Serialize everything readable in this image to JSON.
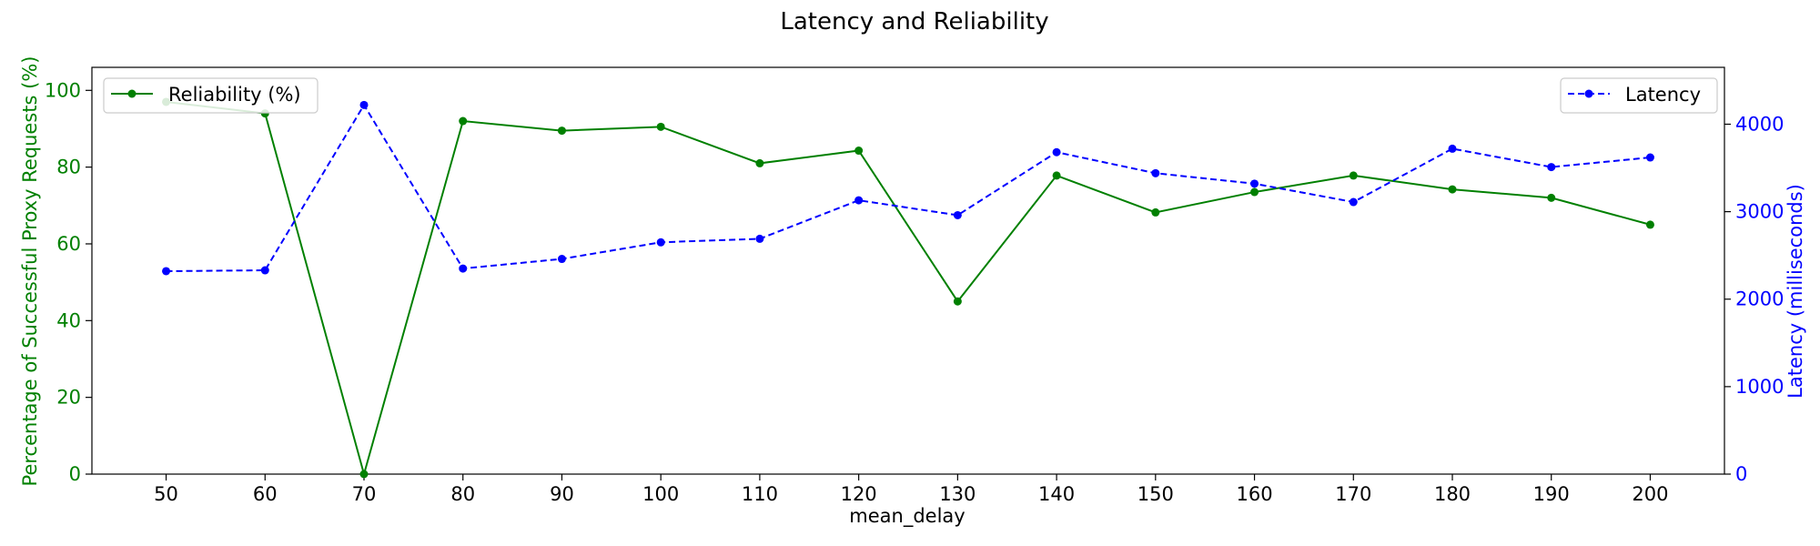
{
  "chart_data": {
    "type": "line",
    "title": "Latency and Reliability",
    "xlabel": "mean_delay",
    "ylabel_left": "Percentage of Successful Proxy Requests (%)",
    "ylabel_right": "Latency (milliseconds)",
    "x": [
      50,
      60,
      70,
      80,
      90,
      100,
      110,
      120,
      130,
      140,
      150,
      160,
      170,
      180,
      190,
      200
    ],
    "x_ticks": [
      "50",
      "60",
      "70",
      "80",
      "90",
      "100",
      "110",
      "120",
      "130",
      "140",
      "150",
      "160",
      "170",
      "180",
      "190",
      "200"
    ],
    "xlim": [
      42.5,
      207.5
    ],
    "ylim_left": [
      0,
      106
    ],
    "ylim_right": [
      0,
      4650
    ],
    "y_ticks_left": [
      "0",
      "20",
      "40",
      "60",
      "80",
      "100"
    ],
    "y_ticks_right": [
      "0",
      "1000",
      "2000",
      "3000",
      "4000"
    ],
    "y_tick_values_left": [
      0,
      20,
      40,
      60,
      80,
      100
    ],
    "y_tick_values_right": [
      0,
      1000,
      2000,
      3000,
      4000
    ],
    "series": [
      {
        "name": "Reliability (%)",
        "axis": "left",
        "color": "#008000",
        "style": "solid",
        "values": [
          97,
          94,
          0,
          92,
          89.5,
          90.5,
          81,
          84.3,
          45,
          77.8,
          68.2,
          73.5,
          77.8,
          74.2,
          72,
          65
        ]
      },
      {
        "name": "Latency",
        "axis": "right",
        "color": "#0000ff",
        "style": "dashed",
        "values": [
          2320,
          2330,
          4220,
          2350,
          2460,
          2650,
          2690,
          3130,
          2960,
          3680,
          3440,
          3320,
          3110,
          3720,
          3510,
          3620
        ]
      }
    ],
    "legend_left": "Reliability (%)",
    "legend_right": "Latency",
    "grid": false
  },
  "colors": {
    "left_axis": "#008000",
    "right_axis": "#0000ff",
    "text": "#000000",
    "frame": "#000000"
  }
}
